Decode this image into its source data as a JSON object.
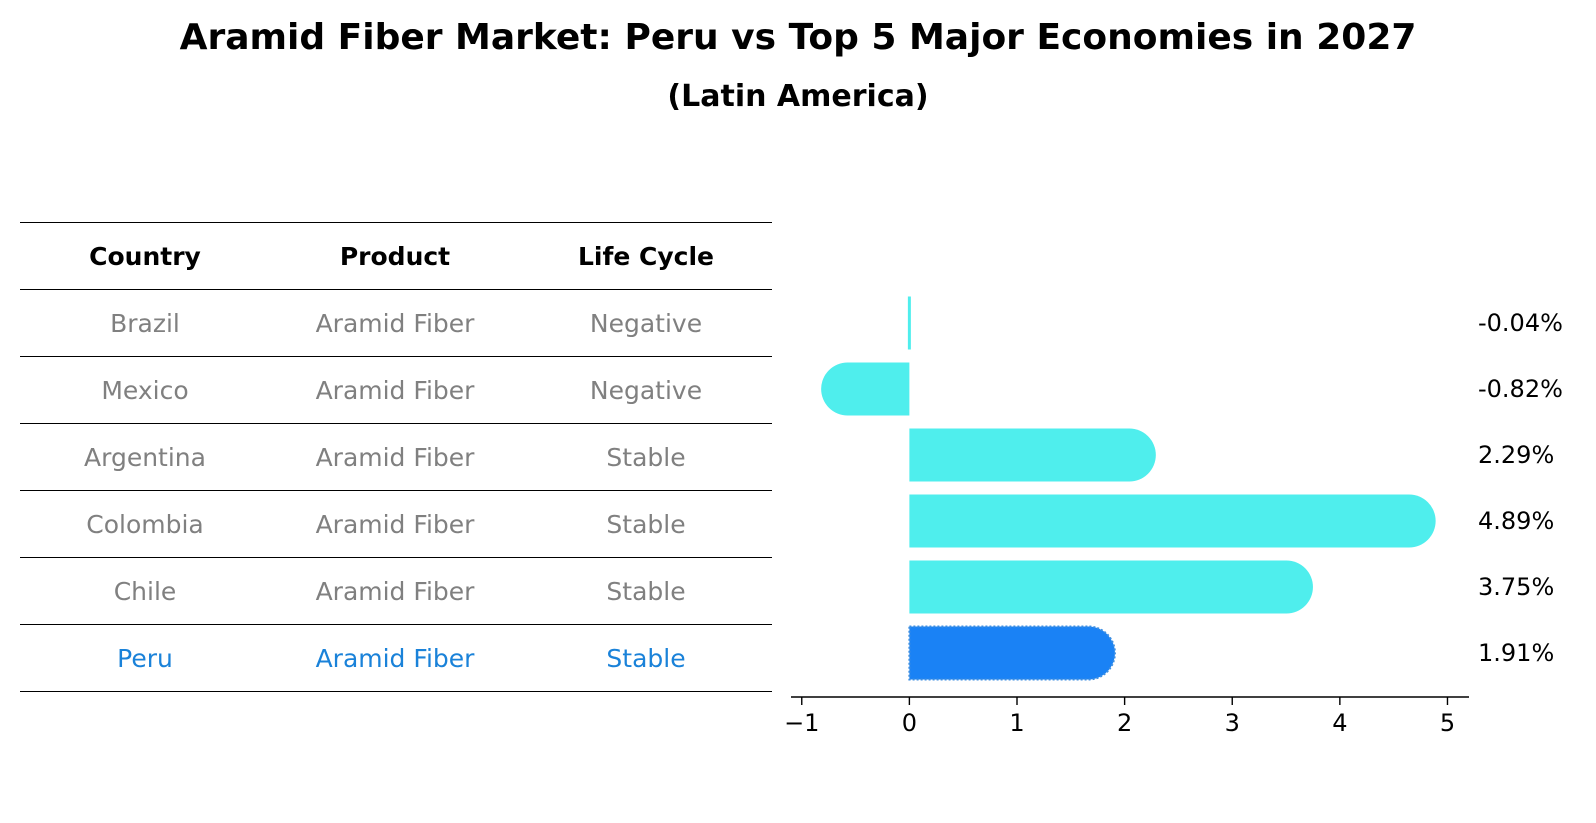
{
  "title": "Aramid Fiber Market: Peru vs Top 5 Major Economies in 2027",
  "subtitle": "(Latin America)",
  "table": {
    "headers": [
      "Country",
      "Product",
      "Life Cycle"
    ],
    "rows": [
      {
        "country": "Brazil",
        "product": "Aramid Fiber",
        "life_cycle": "Negative"
      },
      {
        "country": "Mexico",
        "product": "Aramid Fiber",
        "life_cycle": "Negative"
      },
      {
        "country": "Argentina",
        "product": "Aramid Fiber",
        "life_cycle": "Stable"
      },
      {
        "country": "Colombia",
        "product": "Aramid Fiber",
        "life_cycle": "Stable"
      },
      {
        "country": "Chile",
        "product": "Aramid Fiber",
        "life_cycle": "Stable"
      },
      {
        "country": "Peru",
        "product": "Aramid Fiber",
        "life_cycle": "Stable"
      }
    ]
  },
  "colors": {
    "bar": "#4feeed",
    "highlight_bar": "#1a82f5",
    "highlight_text": "#1a82d9",
    "muted_text": "#808080"
  },
  "chart_data": {
    "type": "bar",
    "orientation": "horizontal",
    "categories": [
      "Brazil",
      "Mexico",
      "Argentina",
      "Colombia",
      "Chile",
      "Peru"
    ],
    "values": [
      -0.04,
      -0.82,
      2.29,
      4.89,
      3.75,
      1.91
    ],
    "value_labels": [
      "-0.04%",
      "-0.82%",
      "2.29%",
      "4.89%",
      "3.75%",
      "1.91%"
    ],
    "highlight": "Peru",
    "xlim": [
      -1.1,
      5.2
    ],
    "xticks": [
      -1,
      0,
      1,
      2,
      3,
      4,
      5
    ],
    "xtick_labels": [
      "−1",
      "0",
      "1",
      "2",
      "3",
      "4",
      "5"
    ]
  }
}
